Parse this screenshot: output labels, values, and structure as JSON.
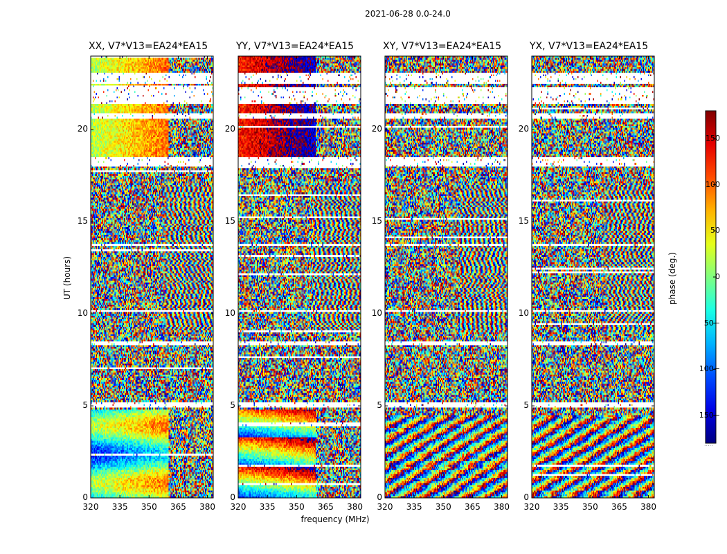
{
  "chart_data": {
    "type": "heatmap",
    "title": "2021-06-28 0.0-24.0",
    "xlabel": "frequency (MHz)",
    "ylabel": "UT (hours)",
    "xlim": [
      320,
      383
    ],
    "ylim": [
      0,
      24
    ],
    "x_ticks": [
      320,
      335,
      350,
      365,
      380
    ],
    "y_ticks": [
      0,
      5,
      10,
      15,
      20
    ],
    "panels": [
      {
        "title": "XX, V7*V13=EA24*EA15",
        "coherent_low_band": true
      },
      {
        "title": "YY, V7*V13=EA24*EA15",
        "coherent_low_band": true
      },
      {
        "title": "XY, V7*V13=EA24*EA15",
        "coherent_low_band": false
      },
      {
        "title": "YX, V7*V13=EA24*EA15",
        "coherent_low_band": false
      }
    ],
    "colorbar": {
      "label": "phase (deg.)",
      "range": [
        -180,
        180
      ],
      "ticks": [
        150,
        100,
        50,
        0,
        -50,
        -100,
        -150
      ],
      "tick_labels": [
        "150",
        "100",
        "50",
        "0",
        "−50",
        "−100",
        "−150"
      ],
      "colormap": "jet",
      "under_text": "....."
    },
    "flagged_hours": [
      [
        18.0,
        18.5
      ],
      [
        20.6,
        20.9
      ],
      [
        21.4,
        22.3
      ],
      [
        22.5,
        23.1
      ],
      [
        4.9,
        5.2
      ],
      [
        8.3,
        8.5
      ],
      [
        10.1,
        10.2
      ],
      [
        13.65,
        13.8
      ]
    ],
    "grid": false
  }
}
